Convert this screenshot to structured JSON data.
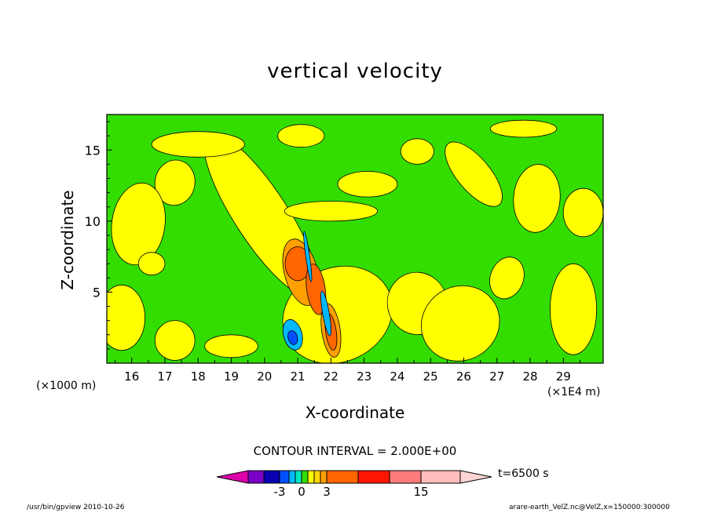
{
  "chart_data": {
    "type": "heatmap",
    "title": "vertical velocity",
    "xlabel": "X-coordinate",
    "ylabel": "Z-coordinate",
    "x_unit_left": "(×1000 m)",
    "x_unit_right": "(×1E4 m)",
    "xlim": [
      15.25,
      30.2
    ],
    "ylim": [
      0,
      17.5
    ],
    "x_ticks": [
      "16",
      "17",
      "18",
      "19",
      "20",
      "21",
      "22",
      "23",
      "24",
      "25",
      "26",
      "27",
      "28",
      "29"
    ],
    "y_ticks": [
      "5",
      "10",
      "15"
    ],
    "contour_interval_text": "CONTOUR INTERVAL = 2.000E+00",
    "time_label": "t=6500 s",
    "colorbar_ticks": [
      "-3",
      "0",
      "3",
      "15"
    ],
    "colorbar_colors": [
      "#dd00aa",
      "#7a00c8",
      "#0a00b0",
      "#0050ff",
      "#00b8ff",
      "#00e8c0",
      "#33dd00",
      "#ffff00",
      "#ffd800",
      "#ffa000",
      "#ff6600",
      "#ff1500",
      "#ff7a7a",
      "#ffbcbc",
      "#ffd6d6"
    ],
    "background_color": "#33dd00",
    "features": [
      {
        "type": "positive",
        "level": "0-3",
        "x": 17.3,
        "z": 12.7,
        "rx": 0.6,
        "rz": 1.6,
        "rot": 10
      },
      {
        "type": "positive",
        "level": "0-3",
        "x": 19.9,
        "z": 10.4,
        "rx": 0.8,
        "rz": 6.8,
        "rot": -33
      },
      {
        "type": "positive",
        "level": "0-3",
        "x": 16.2,
        "z": 9.8,
        "rx": 0.8,
        "rz": 2.9,
        "rot": 8
      },
      {
        "type": "positive",
        "level": "0-3",
        "x": 18.0,
        "z": 15.4,
        "rx": 1.4,
        "rz": 0.9,
        "rot": 0
      },
      {
        "type": "positive",
        "level": "0-3",
        "x": 21.1,
        "z": 16.0,
        "rx": 0.7,
        "rz": 0.8,
        "rot": 0
      },
      {
        "type": "positive",
        "level": "0-3",
        "x": 23.1,
        "z": 12.6,
        "rx": 0.9,
        "rz": 0.9,
        "rot": 0
      },
      {
        "type": "positive",
        "level": "0-3",
        "x": 22.0,
        "z": 10.7,
        "rx": 1.4,
        "rz": 0.7,
        "rot": 0
      },
      {
        "type": "positive",
        "level": "0-3",
        "x": 24.6,
        "z": 14.9,
        "rx": 0.5,
        "rz": 0.9,
        "rot": 0
      },
      {
        "type": "positive",
        "level": "0-3",
        "x": 26.3,
        "z": 13.3,
        "rx": 0.5,
        "rz": 2.8,
        "rot": -40
      },
      {
        "type": "positive",
        "level": "0-3",
        "x": 28.2,
        "z": 11.6,
        "rx": 0.7,
        "rz": 2.4,
        "rot": 5
      },
      {
        "type": "positive",
        "level": "0-3",
        "x": 29.6,
        "z": 10.6,
        "rx": 0.6,
        "rz": 1.7,
        "rot": 0
      },
      {
        "type": "positive",
        "level": "0-3",
        "x": 27.8,
        "z": 16.5,
        "rx": 1.0,
        "rz": 0.6,
        "rot": 0
      },
      {
        "type": "positive",
        "level": "0-3",
        "x": 22.2,
        "z": 3.4,
        "rx": 1.7,
        "rz": 3.3,
        "rot": -25
      },
      {
        "type": "positive",
        "level": "0-3",
        "x": 24.6,
        "z": 4.2,
        "rx": 0.9,
        "rz": 2.2,
        "rot": -15
      },
      {
        "type": "positive",
        "level": "0-3",
        "x": 25.9,
        "z": 2.8,
        "rx": 1.2,
        "rz": 2.6,
        "rot": -30
      },
      {
        "type": "positive",
        "level": "0-3",
        "x": 29.3,
        "z": 3.8,
        "rx": 0.7,
        "rz": 3.2,
        "rot": 0
      },
      {
        "type": "positive",
        "level": "0-3",
        "x": 15.7,
        "z": 3.2,
        "rx": 0.7,
        "rz": 2.3,
        "rot": 0
      },
      {
        "type": "positive",
        "level": "0-3",
        "x": 17.3,
        "z": 1.6,
        "rx": 0.6,
        "rz": 1.4,
        "rot": 0
      },
      {
        "type": "positive",
        "level": "0-3",
        "x": 19.0,
        "z": 1.2,
        "rx": 0.8,
        "rz": 0.8,
        "rot": 0
      },
      {
        "type": "positive",
        "level": "0-3",
        "x": 16.6,
        "z": 7.0,
        "rx": 0.4,
        "rz": 0.8,
        "rot": 0
      },
      {
        "type": "positive",
        "level": "0-3",
        "x": 27.3,
        "z": 6.0,
        "rx": 0.5,
        "rz": 1.5,
        "rot": 20
      },
      {
        "type": "positive",
        "level": "3-5",
        "x": 21.1,
        "z": 6.4,
        "rx": 0.5,
        "rz": 2.4,
        "rot": -15
      },
      {
        "type": "positive",
        "level": "5-7",
        "x": 21.0,
        "z": 7.0,
        "rx": 0.38,
        "rz": 1.2,
        "rot": 0
      },
      {
        "type": "positive",
        "level": "5-7",
        "x": 21.55,
        "z": 5.2,
        "rx": 0.28,
        "rz": 1.8,
        "rot": -8
      },
      {
        "type": "positive",
        "level": "3-5",
        "x": 22.0,
        "z": 2.3,
        "rx": 0.28,
        "rz": 1.9,
        "rot": -8
      },
      {
        "type": "positive",
        "level": "5-7",
        "x": 22.0,
        "z": 2.2,
        "rx": 0.16,
        "rz": 1.3,
        "rot": -8
      },
      {
        "type": "negative",
        "level": "-3 to -1",
        "x": 20.85,
        "z": 2.0,
        "rx": 0.28,
        "rz": 1.1,
        "rot": -15
      },
      {
        "type": "negative",
        "level": "-5 to -3",
        "x": 20.85,
        "z": 1.8,
        "rx": 0.14,
        "rz": 0.5,
        "rot": -15
      },
      {
        "type": "negative",
        "level": "-3 to -1",
        "x": 21.85,
        "z": 3.5,
        "rx": 0.1,
        "rz": 1.6,
        "rot": -10
      },
      {
        "type": "negative",
        "level": "-3 to -1",
        "x": 21.3,
        "z": 7.5,
        "rx": 0.06,
        "rz": 1.8,
        "rot": -8
      }
    ]
  },
  "footer": {
    "left": "/usr/bin/gpview   2010-10-26",
    "right": "arare-earth_VelZ.nc@VelZ,x=150000:300000"
  }
}
